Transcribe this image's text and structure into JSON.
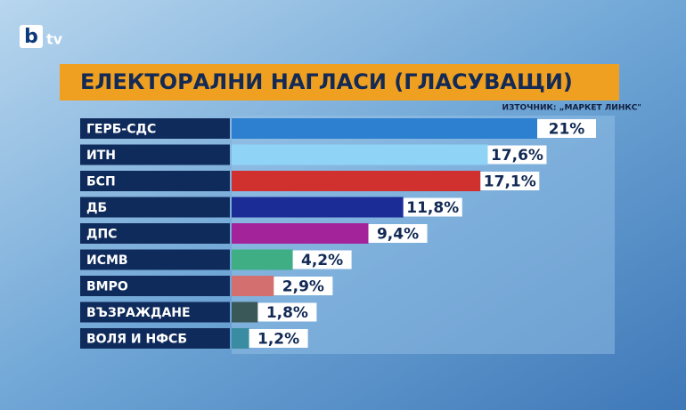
{
  "logo": {
    "mark": "b",
    "text": "tv"
  },
  "chart_data": {
    "type": "bar",
    "orientation": "horizontal",
    "title": "ЕЛЕКТОРАЛНИ НАГЛАСИ (ГЛАСУВАЩИ)",
    "source": "ИЗТОЧНИК: „МАРКЕТ ЛИНКС\"",
    "categories": [
      "ГЕРБ-СДС",
      "ИТН",
      "БСП",
      "ДБ",
      "ДПС",
      "ИСМВ",
      "ВМРО",
      "ВЪЗРАЖДАНЕ",
      "ВОЛЯ И НФСБ"
    ],
    "values": [
      21,
      17.6,
      17.1,
      11.8,
      9.4,
      4.2,
      2.9,
      1.8,
      1.2
    ],
    "value_labels": [
      "21%",
      "17,6%",
      "17,1%",
      "11,8%",
      "9,4%",
      "4,2%",
      "2,9%",
      "1,8%",
      "1,2%"
    ],
    "colors": [
      "#2d7fd0",
      "#8fd3f7",
      "#d0302e",
      "#1b2c96",
      "#a3239b",
      "#3fae85",
      "#d46f6f",
      "#3b5858",
      "#3a8ca3"
    ]
  }
}
